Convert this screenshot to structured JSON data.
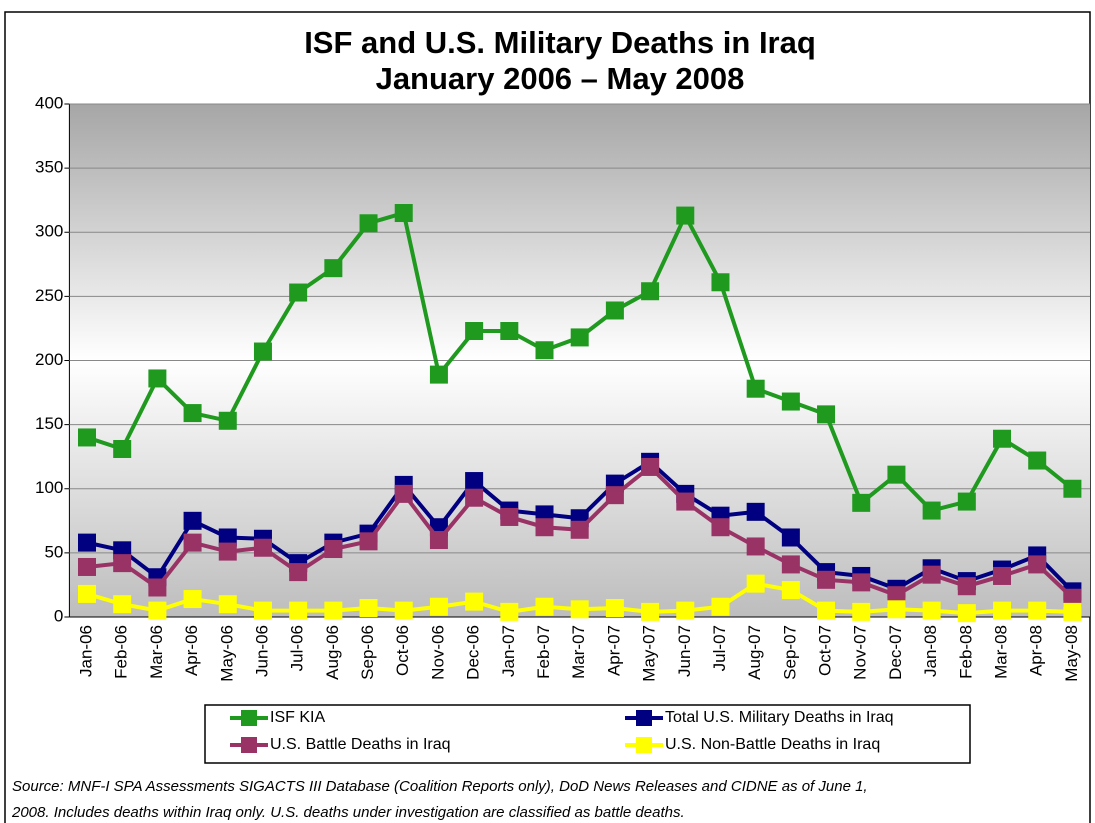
{
  "chart_data": {
    "type": "line",
    "title": [
      "ISF and U.S. Military Deaths in Iraq",
      "January 2006 – May 2008"
    ],
    "categories": [
      "Jan-06",
      "Feb-06",
      "Mar-06",
      "Apr-06",
      "May-06",
      "Jun-06",
      "Jul-06",
      "Aug-06",
      "Sep-06",
      "Oct-06",
      "Nov-06",
      "Dec-06",
      "Jan-07",
      "Feb-07",
      "Mar-07",
      "Apr-07",
      "May-07",
      "Jun-07",
      "Jul-07",
      "Aug-07",
      "Sep-07",
      "Oct-07",
      "Nov-07",
      "Dec-07",
      "Jan-08",
      "Feb-08",
      "Mar-08",
      "Apr-08",
      "May-08"
    ],
    "series": [
      {
        "name": "ISF KIA",
        "color": "#1f9a1f",
        "values": [
          140,
          131,
          186,
          159,
          153,
          207,
          253,
          272,
          307,
          315,
          189,
          223,
          223,
          208,
          218,
          239,
          254,
          313,
          261,
          178,
          168,
          158,
          89,
          111,
          83,
          90,
          139,
          122,
          100
        ]
      },
      {
        "name": "Total U.S. Military Deaths in Iraq",
        "color": "#000080",
        "values": [
          58,
          52,
          31,
          75,
          62,
          61,
          42,
          58,
          65,
          103,
          70,
          106,
          83,
          80,
          77,
          104,
          121,
          96,
          79,
          82,
          62,
          35,
          32,
          22,
          38,
          28,
          37,
          48,
          20
        ]
      },
      {
        "name": "U.S. Battle Deaths in Iraq",
        "color": "#993366",
        "values": [
          39,
          42,
          23,
          58,
          51,
          54,
          35,
          53,
          59,
          96,
          60,
          93,
          78,
          70,
          68,
          95,
          117,
          90,
          70,
          55,
          41,
          29,
          27,
          17,
          33,
          24,
          32,
          41,
          15
        ]
      },
      {
        "name": "U.S. Non-Battle Deaths in Iraq",
        "color": "#ffff00",
        "values": [
          18,
          10,
          5,
          14,
          10,
          5,
          5,
          5,
          7,
          5,
          8,
          12,
          4,
          8,
          6,
          7,
          4,
          5,
          8,
          26,
          21,
          5,
          4,
          6,
          5,
          3,
          5,
          5,
          4
        ]
      }
    ],
    "ylim": [
      0,
      400
    ],
    "yticks": [
      0,
      50,
      100,
      150,
      200,
      250,
      300,
      350,
      400
    ],
    "grid": true,
    "legend": "bottom",
    "source": [
      "Source:  MNF-I SPA Assessments SIGACTS III Database (Coalition Reports only), DoD News Releases and CIDNE as of  June 1,",
      "2008.  Includes deaths within Iraq only.  U.S. deaths under investigation are classified as battle deaths."
    ]
  }
}
